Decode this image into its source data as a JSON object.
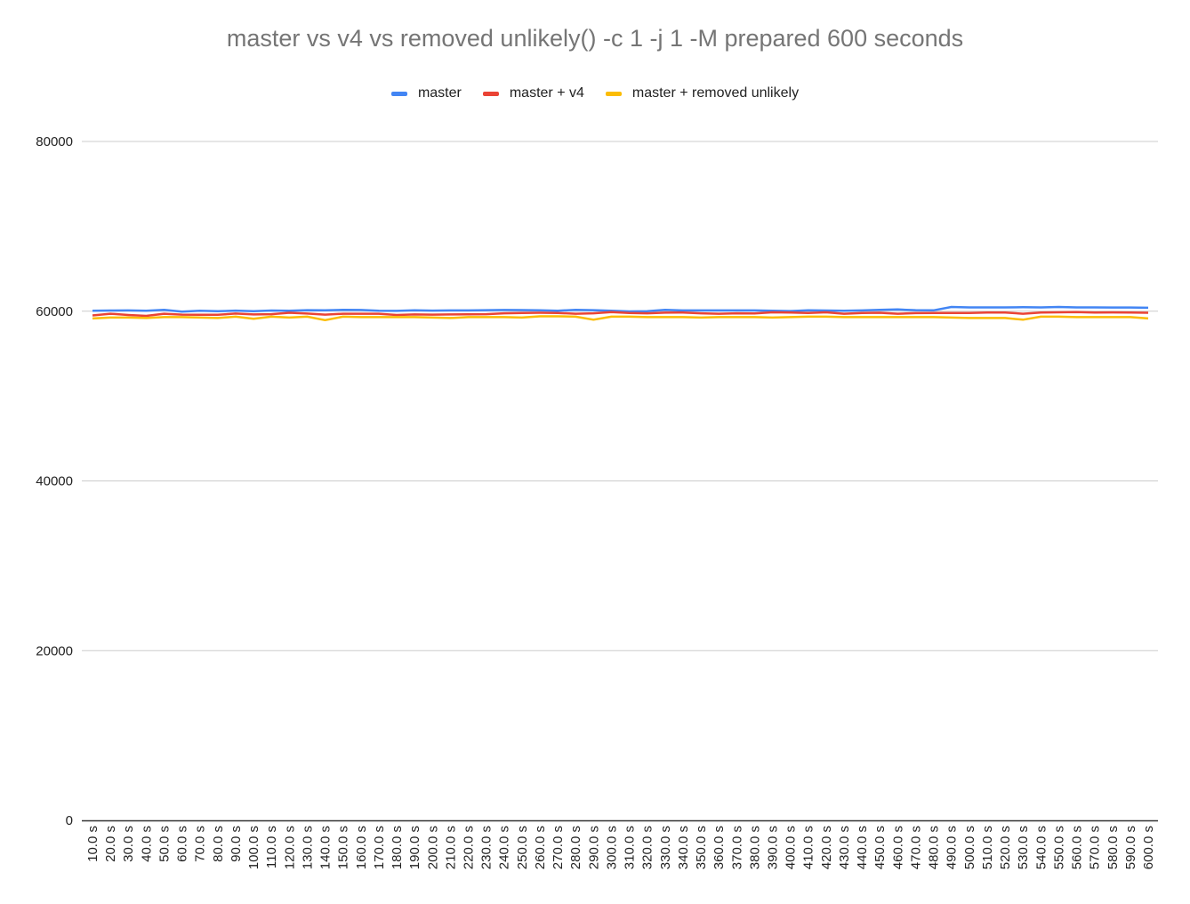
{
  "chart_data": {
    "type": "line",
    "title": "master vs v4 vs removed unlikely() -c 1 -j 1 -M prepared 600 seconds",
    "xlabel": "",
    "ylabel": "",
    "ylim": [
      0,
      80000
    ],
    "yticks": [
      "0",
      "20000",
      "40000",
      "60000",
      "80000"
    ],
    "grid": true,
    "legend_position": "top",
    "categories": [
      "10.0 s",
      "20.0 s",
      "30.0 s",
      "40.0 s",
      "50.0 s",
      "60.0 s",
      "70.0 s",
      "80.0 s",
      "90.0 s",
      "100.0 s",
      "110.0 s",
      "120.0 s",
      "130.0 s",
      "140.0 s",
      "150.0 s",
      "160.0 s",
      "170.0 s",
      "180.0 s",
      "190.0 s",
      "200.0 s",
      "210.0 s",
      "220.0 s",
      "230.0 s",
      "240.0 s",
      "250.0 s",
      "260.0 s",
      "270.0 s",
      "280.0 s",
      "290.0 s",
      "300.0 s",
      "310.0 s",
      "320.0 s",
      "330.0 s",
      "340.0 s",
      "350.0 s",
      "360.0 s",
      "370.0 s",
      "380.0 s",
      "390.0 s",
      "400.0 s",
      "410.0 s",
      "420.0 s",
      "430.0 s",
      "440.0 s",
      "450.0 s",
      "460.0 s",
      "470.0 s",
      "480.0 s",
      "490.0 s",
      "500.0 s",
      "510.0 s",
      "520.0 s",
      "530.0 s",
      "540.0 s",
      "550.0 s",
      "560.0 s",
      "570.0 s",
      "580.0 s",
      "590.0 s",
      "600.0 s"
    ],
    "series": [
      {
        "name": "master",
        "color": "#4285f4",
        "values": [
          60050,
          60080,
          60090,
          60060,
          60150,
          59950,
          60050,
          59990,
          60070,
          60010,
          60080,
          60060,
          60120,
          60100,
          60150,
          60140,
          60060,
          60040,
          60110,
          60070,
          60090,
          60090,
          60120,
          60140,
          60130,
          60100,
          60060,
          60150,
          60120,
          60050,
          59970,
          60000,
          60150,
          60090,
          60090,
          60090,
          60090,
          60090,
          60060,
          60020,
          60100,
          60080,
          60060,
          60090,
          60150,
          60200,
          60120,
          60100,
          60500,
          60450,
          60450,
          60450,
          60470,
          60450,
          60500,
          60450,
          60450,
          60430,
          60430,
          60400
        ]
      },
      {
        "name": "master + v4",
        "color": "#ea4335",
        "values": [
          59500,
          59700,
          59550,
          59450,
          59700,
          59600,
          59580,
          59580,
          59720,
          59620,
          59650,
          59820,
          59720,
          59600,
          59700,
          59700,
          59700,
          59550,
          59620,
          59600,
          59620,
          59640,
          59650,
          59750,
          59800,
          59820,
          59800,
          59700,
          59750,
          59900,
          59800,
          59750,
          59830,
          59850,
          59750,
          59700,
          59750,
          59740,
          59870,
          59850,
          59800,
          59870,
          59700,
          59800,
          59820,
          59700,
          59770,
          59790,
          59790,
          59800,
          59850,
          59850,
          59700,
          59850,
          59870,
          59900,
          59850,
          59860,
          59850,
          59820
        ]
      },
      {
        "name": "master + removed unlikely",
        "color": "#fbbc04",
        "values": [
          59150,
          59250,
          59250,
          59200,
          59300,
          59300,
          59250,
          59200,
          59350,
          59100,
          59350,
          59250,
          59350,
          58950,
          59350,
          59300,
          59300,
          59300,
          59300,
          59250,
          59200,
          59300,
          59300,
          59300,
          59250,
          59400,
          59400,
          59350,
          59000,
          59350,
          59350,
          59300,
          59300,
          59300,
          59250,
          59300,
          59300,
          59300,
          59250,
          59300,
          59350,
          59350,
          59300,
          59300,
          59300,
          59300,
          59300,
          59300,
          59250,
          59200,
          59200,
          59200,
          59000,
          59350,
          59350,
          59300,
          59300,
          59300,
          59300,
          59150
        ]
      }
    ]
  }
}
